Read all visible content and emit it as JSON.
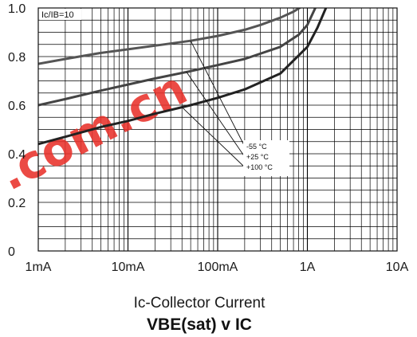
{
  "chart_data": {
    "type": "line",
    "title_main": "VBE(sat)",
    "title_sep": " v ",
    "title_tail": "IC",
    "xlabel": "Ic-Collector Current",
    "ylabel": "",
    "condition": "Ic/IB=10",
    "x_scale": "log",
    "xlim": [
      0.001,
      10
    ],
    "ylim": [
      0,
      1.0
    ],
    "grid": true,
    "x_tick_values": [
      0.001,
      0.01,
      0.1,
      1,
      10
    ],
    "x_ticks": [
      "1mA",
      "10mA",
      "100mA",
      "1A",
      "10A"
    ],
    "y_tick_values": [
      0,
      0.2,
      0.4,
      0.6,
      0.8,
      1.0
    ],
    "y_ticks": [
      "0",
      "0.2",
      "0.4",
      "0.6",
      "0.8",
      "1.0"
    ],
    "legend_placement": "center-right",
    "series": [
      {
        "name": "-55 °C",
        "color": "#555555",
        "x": [
          0.001,
          0.002,
          0.005,
          0.01,
          0.02,
          0.05,
          0.1,
          0.2,
          0.3,
          0.5,
          0.7,
          1.0
        ],
        "y": [
          0.77,
          0.79,
          0.815,
          0.83,
          0.845,
          0.865,
          0.885,
          0.91,
          0.93,
          0.96,
          0.985,
          1.02
        ]
      },
      {
        "name": "+25 °C",
        "color": "#444444",
        "x": [
          0.001,
          0.002,
          0.005,
          0.01,
          0.02,
          0.05,
          0.1,
          0.2,
          0.5,
          0.8,
          1.0,
          1.3
        ],
        "y": [
          0.6,
          0.625,
          0.66,
          0.685,
          0.71,
          0.74,
          0.765,
          0.79,
          0.84,
          0.89,
          0.93,
          1.02
        ]
      },
      {
        "name": "+100 °C",
        "color": "#222222",
        "x": [
          0.001,
          0.002,
          0.005,
          0.01,
          0.02,
          0.05,
          0.1,
          0.2,
          0.5,
          1.0,
          1.3,
          1.7
        ],
        "y": [
          0.44,
          0.47,
          0.51,
          0.535,
          0.565,
          0.6,
          0.63,
          0.665,
          0.73,
          0.84,
          0.92,
          1.02
        ]
      }
    ]
  },
  "watermark": {
    "text": ".com.cn",
    "color": "#e8312a"
  }
}
